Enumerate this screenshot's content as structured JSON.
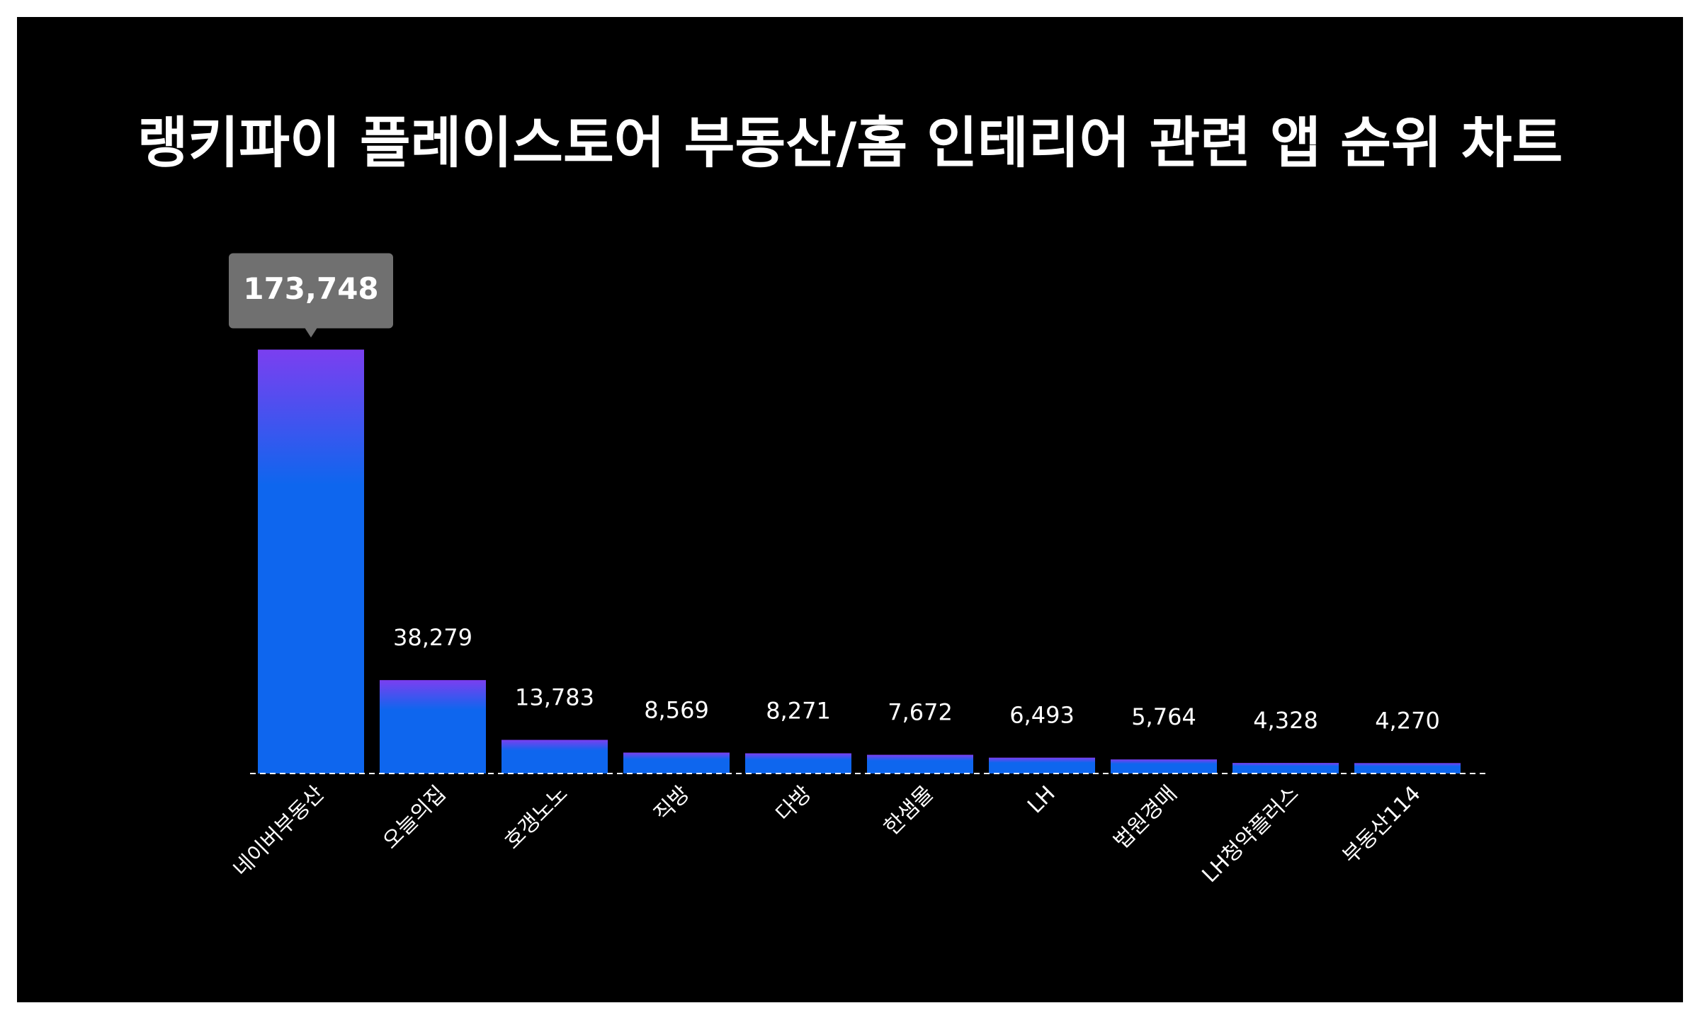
{
  "chart_data": {
    "type": "bar",
    "title": "랭키파이 플레이스토어 부동산/홈 인테리어 관련 앱 순위 차트",
    "categories": [
      "네이버부동산",
      "오늘의집",
      "호갱노노",
      "직방",
      "다방",
      "한샘몰",
      "LH",
      "법원경매",
      "LH청약플러스",
      "부동산114"
    ],
    "values": [
      173748,
      38279,
      13783,
      8569,
      8271,
      7672,
      6493,
      5764,
      4328,
      4270
    ],
    "value_labels": [
      "173,748",
      "38,279",
      "13,783",
      "8,569",
      "8,271",
      "7,672",
      "6,493",
      "5,764",
      "4,328",
      "4,270"
    ],
    "gradient": [
      "#7b3ff0",
      "#0e66ee"
    ],
    "ylim": [
      0,
      180000
    ]
  }
}
